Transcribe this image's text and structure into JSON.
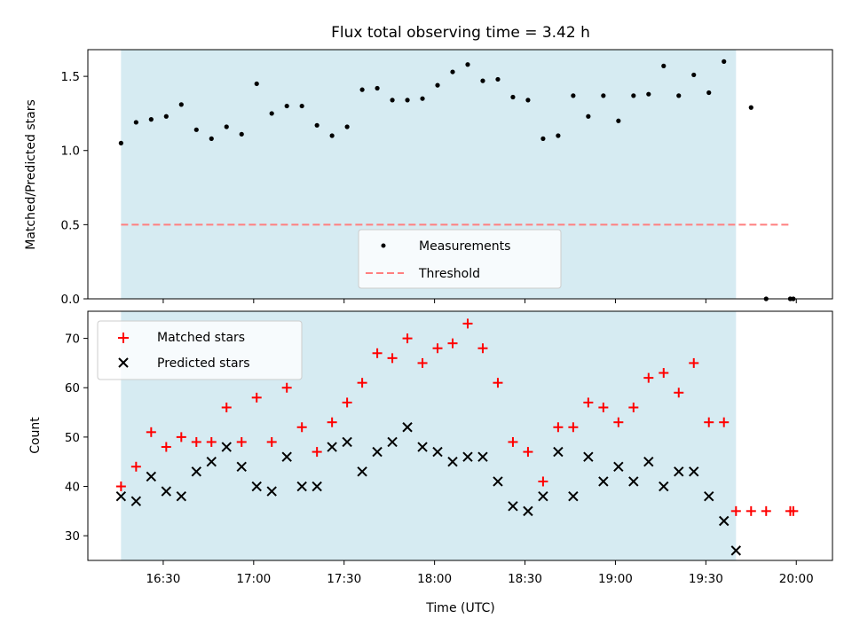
{
  "colors": {
    "band": "#add8e6",
    "measurement": "#000000",
    "threshold": "#ff7f7f",
    "matched": "#ff0000",
    "predicted": "#000000"
  },
  "chart_data": [
    {
      "type": "scatter",
      "title": "Flux total observing time = 3.42 h",
      "xlabel": "",
      "ylabel": "Matched/Predicted stars",
      "xlim": [
        "16:05",
        "20:12"
      ],
      "ylim": [
        0,
        1.68
      ],
      "y_ticks": [
        0.0,
        0.5,
        1.0,
        1.5
      ],
      "y_tick_labels": [
        "0.0",
        "0.5",
        "1.0",
        "1.5"
      ],
      "x_ticks": [
        "16:30",
        "17:00",
        "17:30",
        "18:00",
        "18:30",
        "19:00",
        "19:30",
        "20:00"
      ],
      "shaded_interval": [
        "16:16",
        "19:40"
      ],
      "grid": false,
      "legend_position": "lower center",
      "series": [
        {
          "name": "Measurements",
          "marker": "dot",
          "x": [
            "16:16",
            "16:21",
            "16:26",
            "16:31",
            "16:36",
            "16:41",
            "16:46",
            "16:51",
            "16:56",
            "17:01",
            "17:06",
            "17:11",
            "17:16",
            "17:21",
            "17:26",
            "17:31",
            "17:36",
            "17:41",
            "17:46",
            "17:51",
            "17:56",
            "18:01",
            "18:06",
            "18:11",
            "18:16",
            "18:21",
            "18:26",
            "18:31",
            "18:36",
            "18:41",
            "18:46",
            "18:51",
            "18:56",
            "19:01",
            "19:06",
            "19:11",
            "19:16",
            "19:21",
            "19:26",
            "19:31",
            "19:36",
            "19:45",
            "19:50",
            "19:58",
            "19:59"
          ],
          "y": [
            1.05,
            1.19,
            1.21,
            1.23,
            1.31,
            1.14,
            1.08,
            1.16,
            1.11,
            1.45,
            1.25,
            1.3,
            1.3,
            1.17,
            1.1,
            1.16,
            1.41,
            1.42,
            1.34,
            1.34,
            1.35,
            1.44,
            1.53,
            1.58,
            1.47,
            1.48,
            1.36,
            1.34,
            1.08,
            1.1,
            1.37,
            1.23,
            1.37,
            1.2,
            1.37,
            1.38,
            1.57,
            1.37,
            1.51,
            1.39,
            1.6,
            1.29,
            0.0,
            0.0,
            0.0
          ]
        },
        {
          "name": "Threshold",
          "line": "dashed",
          "x": [
            "16:16",
            "19:58"
          ],
          "y": [
            0.5,
            0.5
          ]
        }
      ]
    },
    {
      "type": "scatter",
      "xlabel": "Time (UTC)",
      "ylabel": "Count",
      "xlim": [
        "16:05",
        "20:12"
      ],
      "ylim": [
        25,
        75.5
      ],
      "y_ticks": [
        30,
        40,
        50,
        60,
        70
      ],
      "y_tick_labels": [
        "30",
        "40",
        "50",
        "60",
        "70"
      ],
      "x_ticks": [
        "16:30",
        "17:00",
        "17:30",
        "18:00",
        "18:30",
        "19:00",
        "19:30",
        "20:00"
      ],
      "x_tick_labels": [
        "16:30",
        "17:00",
        "17:30",
        "18:00",
        "18:30",
        "19:00",
        "19:30",
        "20:00"
      ],
      "shaded_interval": [
        "16:16",
        "19:40"
      ],
      "grid": false,
      "legend_position": "upper left",
      "series": [
        {
          "name": "Matched stars",
          "marker": "plus",
          "x": [
            "16:16",
            "16:21",
            "16:26",
            "16:31",
            "16:36",
            "16:41",
            "16:46",
            "16:51",
            "16:56",
            "17:01",
            "17:06",
            "17:11",
            "17:16",
            "17:21",
            "17:26",
            "17:31",
            "17:36",
            "17:41",
            "17:46",
            "17:51",
            "17:56",
            "18:01",
            "18:06",
            "18:11",
            "18:16",
            "18:21",
            "18:26",
            "18:31",
            "18:36",
            "18:41",
            "18:46",
            "18:51",
            "18:56",
            "19:01",
            "19:06",
            "19:11",
            "19:16",
            "19:21",
            "19:26",
            "19:31",
            "19:36",
            "19:40",
            "19:45",
            "19:50",
            "19:58",
            "19:59"
          ],
          "y": [
            40,
            44,
            51,
            48,
            50,
            49,
            49,
            56,
            49,
            58,
            49,
            60,
            52,
            47,
            53,
            57,
            61,
            67,
            66,
            70,
            65,
            68,
            69,
            73,
            68,
            61,
            49,
            47,
            41,
            52,
            52,
            57,
            56,
            53,
            56,
            62,
            63,
            59,
            65,
            53,
            53,
            35,
            35,
            35,
            35,
            35
          ]
        },
        {
          "name": "Predicted stars",
          "marker": "x",
          "x": [
            "16:16",
            "16:21",
            "16:26",
            "16:31",
            "16:36",
            "16:41",
            "16:46",
            "16:51",
            "16:56",
            "17:01",
            "17:06",
            "17:11",
            "17:16",
            "17:21",
            "17:26",
            "17:31",
            "17:36",
            "17:41",
            "17:46",
            "17:51",
            "17:56",
            "18:01",
            "18:06",
            "18:11",
            "18:16",
            "18:21",
            "18:26",
            "18:31",
            "18:36",
            "18:41",
            "18:46",
            "18:51",
            "18:56",
            "19:01",
            "19:06",
            "19:11",
            "19:16",
            "19:21",
            "19:26",
            "19:31",
            "19:36",
            "19:40"
          ],
          "y": [
            38,
            37,
            42,
            39,
            38,
            43,
            45,
            48,
            44,
            40,
            39,
            46,
            40,
            40,
            48,
            49,
            43,
            47,
            49,
            52,
            48,
            47,
            45,
            46,
            46,
            41,
            36,
            35,
            38,
            47,
            38,
            46,
            41,
            44,
            41,
            45,
            40,
            43,
            43,
            38,
            33,
            27
          ]
        }
      ]
    }
  ]
}
